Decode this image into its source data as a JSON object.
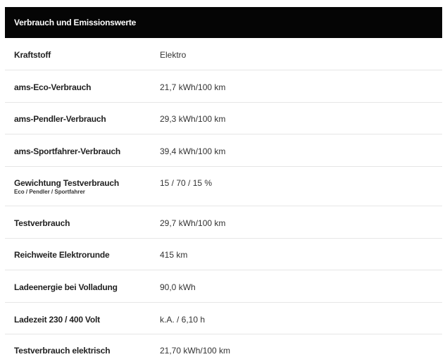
{
  "table": {
    "title": "Verbrauch und Emissionswerte",
    "rows": [
      {
        "label": "Kraftstoff",
        "value": "Elektro"
      },
      {
        "label": "ams-Eco-Verbrauch",
        "value": "21,7 kWh/100 km"
      },
      {
        "label": "ams-Pendler-Verbrauch",
        "value": "29,3 kWh/100 km"
      },
      {
        "label": "ams-Sportfahrer-Verbrauch",
        "value": "39,4 kWh/100 km"
      },
      {
        "label": "Gewichtung Testverbrauch",
        "sublabel": "Eco / Pendler / Sportfahrer",
        "value": "15 / 70 / 15 %"
      },
      {
        "label": "Testverbrauch",
        "value": "29,7 kWh/100 km"
      },
      {
        "label": "Reichweite Elektrorunde",
        "value": "415 km"
      },
      {
        "label": "Ladeenergie bei Volladung",
        "value": "90,0 kWh"
      },
      {
        "label": "Ladezeit 230 / 400 Volt",
        "value": "k.A. / 6,10 h"
      },
      {
        "label": "Testverbrauch elektrisch",
        "value": "21,70 kWh/100 km"
      }
    ]
  }
}
